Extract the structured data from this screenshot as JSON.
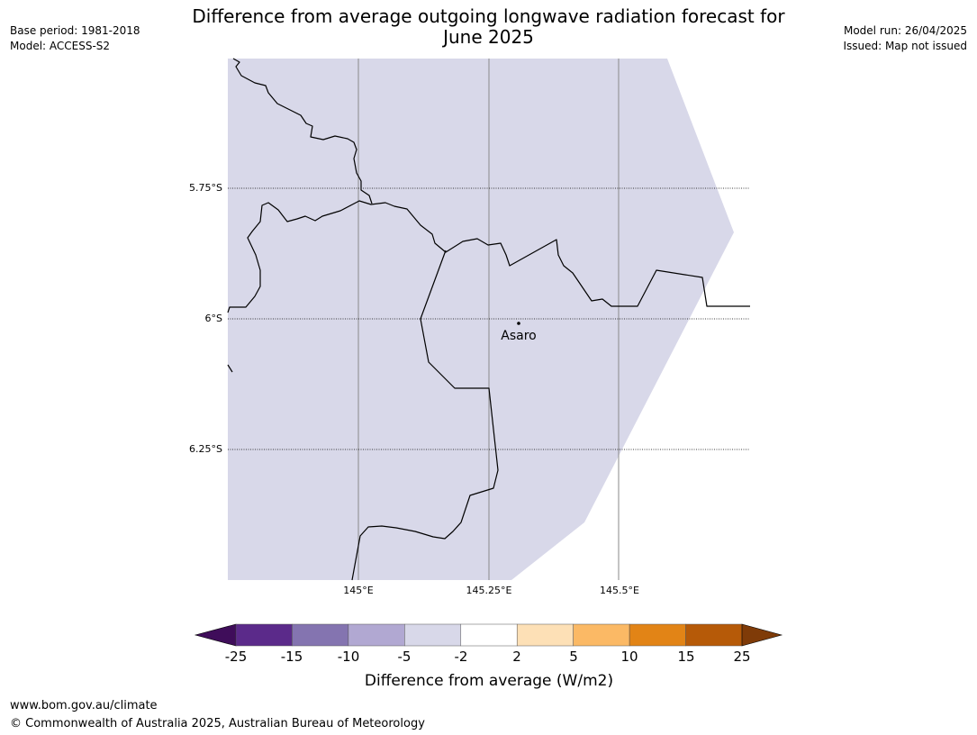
{
  "header": {
    "base_period": "Base period: 1981-2018",
    "model": "Model: ACCESS-S2",
    "model_run": "Model run: 26/04/2025",
    "issued": "Issued: Map not issued",
    "title_line1": "Difference from average outgoing longwave radiation forecast for",
    "title_line2": "June 2025"
  },
  "map": {
    "fill_color": "#d8d8e9",
    "latitudes": [
      "5.75°S",
      "6°S",
      "6.25°S"
    ],
    "longitudes": [
      "145°E",
      "145.25°E",
      "145.5°E"
    ],
    "place": {
      "name": "Asaro",
      "icon": "location-dot-icon"
    }
  },
  "legend": {
    "label": "Difference from average (W/m2)",
    "ticks": [
      "-25",
      "-15",
      "-10",
      "-5",
      "-2",
      "2",
      "5",
      "10",
      "15",
      "25"
    ],
    "colors": [
      "#3f0d5a",
      "#5b2a8a",
      "#8474b0",
      "#b1a8d2",
      "#d8d8e9",
      "#ffffff",
      "#fde0b6",
      "#fbb965",
      "#e28416",
      "#b65a08",
      "#7f3b08"
    ]
  },
  "footer": {
    "url": "www.bom.gov.au/climate",
    "copyright": "© Commonwealth of Australia 2025, Australian Bureau of Meteorology"
  }
}
